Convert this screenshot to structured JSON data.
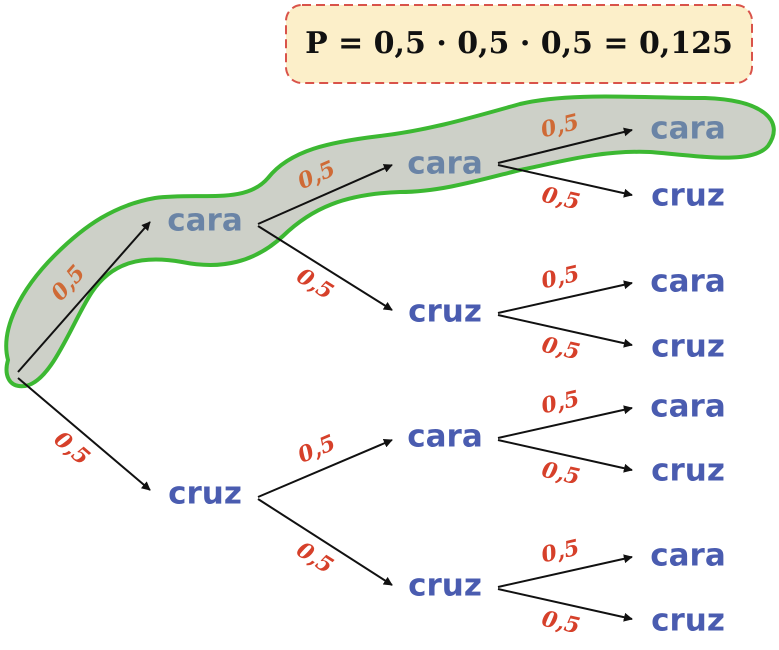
{
  "formula": "P = 0,5 · 0,5 · 0,5 = 0,125",
  "nodes": [
    {
      "label": "cara"
    },
    {
      "label": "cruz"
    },
    {
      "label": "cara"
    },
    {
      "label": "cruz"
    },
    {
      "label": "cara"
    },
    {
      "label": "cruz"
    },
    {
      "label": "cara"
    },
    {
      "label": "cruz"
    },
    {
      "label": "cara"
    },
    {
      "label": "cruz"
    },
    {
      "label": "cara"
    },
    {
      "label": "cruz"
    },
    {
      "label": "cara"
    },
    {
      "label": "cruz"
    }
  ],
  "edges": [
    {
      "label": "0,5"
    },
    {
      "label": "0,5"
    },
    {
      "label": "0,5"
    },
    {
      "label": "0,5"
    },
    {
      "label": "0,5"
    },
    {
      "label": "0,5"
    },
    {
      "label": "0,5"
    },
    {
      "label": "0,5"
    },
    {
      "label": "0,5"
    },
    {
      "label": "0,5"
    },
    {
      "label": "0,5"
    },
    {
      "label": "0,5"
    },
    {
      "label": "0,5"
    },
    {
      "label": "0,5"
    }
  ]
}
